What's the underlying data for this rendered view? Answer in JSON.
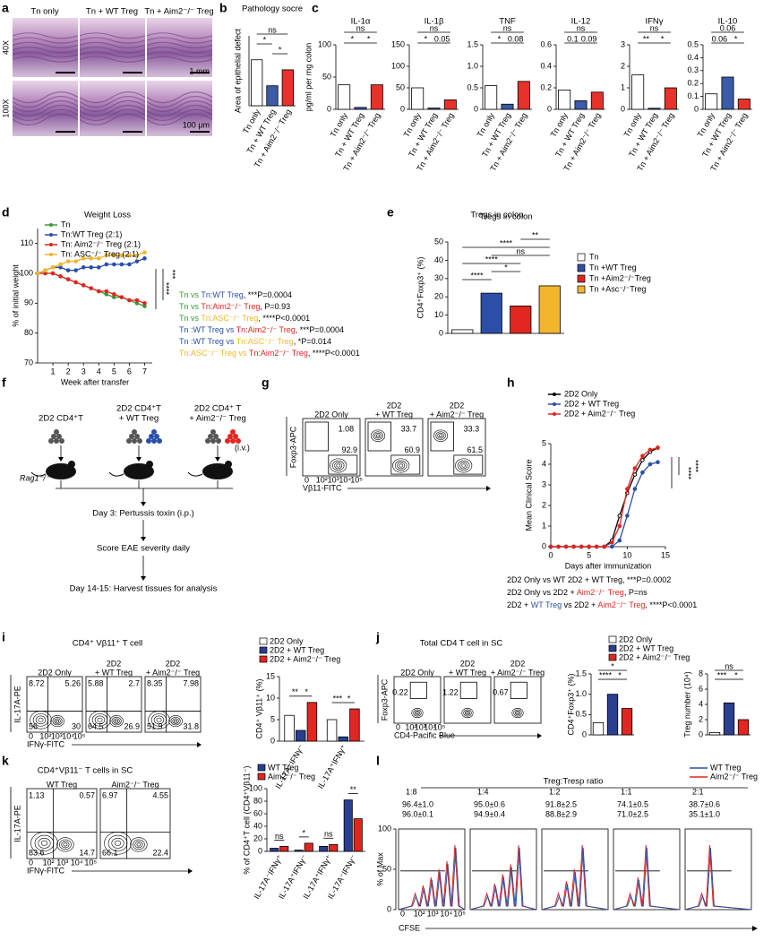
{
  "panel_labels": [
    "a",
    "b",
    "c",
    "d",
    "e",
    "f",
    "g",
    "h",
    "i",
    "j",
    "k",
    "l"
  ],
  "a": {
    "columns": [
      "Tn only",
      "Tn + WT Treg",
      "Tn + Aim2⁻/⁻ Treg"
    ],
    "rows": [
      "40X",
      "100X"
    ],
    "scale_bars": [
      "1 mm",
      "100 μm"
    ]
  },
  "b": {
    "title": "Pathology socre",
    "ylabel": "Area of epithelial defect",
    "categories": [
      "Tn only",
      "Tn + WT Treg",
      "Tn + Aim2⁻/⁻ Treg"
    ],
    "values": [
      2.3,
      1.0,
      1.8
    ],
    "colors": [
      "#ffffff",
      "#3b5aa8",
      "#e8312b"
    ],
    "ylim": [
      0,
      3.5
    ],
    "stats": [
      "ns",
      "*",
      "*"
    ]
  },
  "c": {
    "ylabel": "pg/ml per mg colon",
    "categories": [
      "Tn only",
      "Tn + WT Treg",
      "Tn + Aim2⁻/⁻ Treg"
    ],
    "colors": [
      "#ffffff",
      "#3b5aa8",
      "#e8312b"
    ],
    "charts": [
      {
        "title": "IL-1α",
        "values": [
          38,
          3,
          38
        ],
        "ylim": [
          0,
          100
        ],
        "yticks": [
          0,
          50,
          100
        ],
        "stats": [
          "ns",
          "*",
          "*"
        ]
      },
      {
        "title": "IL-1β",
        "values": [
          50,
          3,
          22
        ],
        "ylim": [
          0,
          150
        ],
        "yticks": [
          0,
          50,
          100,
          150
        ],
        "stats": [
          "ns",
          "*",
          "0.05"
        ]
      },
      {
        "title": "TNF",
        "values": [
          0.55,
          0.12,
          0.65
        ],
        "ylim": [
          0,
          1.5
        ],
        "yticks": [
          0,
          0.5,
          {
            "value": 1,
            "label": "1.0"
          },
          1.5
        ],
        "stats": [
          "ns",
          "*",
          "0.08"
        ]
      },
      {
        "title": "IL-12",
        "values": [
          0.18,
          0.08,
          0.16
        ],
        "ylim": [
          0,
          0.6
        ],
        "yticks": [
          0,
          0.2,
          0.4,
          0.6
        ],
        "stats": [
          "ns",
          "0.1",
          "0.09"
        ]
      },
      {
        "title": "IFNγ",
        "values": [
          1.6,
          0.05,
          1.0
        ],
        "ylim": [
          0,
          3
        ],
        "yticks": [
          0,
          1,
          2,
          3
        ],
        "stats": [
          "ns",
          "**",
          "*"
        ]
      },
      {
        "title": "IL-10",
        "values": [
          0.12,
          0.25,
          0.08
        ],
        "ylim": [
          0,
          0.5
        ],
        "yticks": [
          0,
          0.1,
          0.2,
          0.3,
          0.4,
          0.5
        ],
        "stats": [
          "0.06",
          "0.06",
          "*"
        ]
      }
    ]
  },
  "d": {
    "type": "line",
    "title": "Weight Loss",
    "xlabel": "Week after transfer",
    "ylabel": "% of initial weight",
    "x": [
      0,
      0.5,
      1,
      1.5,
      2,
      2.5,
      3,
      3.5,
      4,
      4.5,
      5,
      5.5,
      6,
      6.5,
      7
    ],
    "xlim": [
      0,
      7.5
    ],
    "xticks": [
      1,
      2,
      3,
      4,
      5,
      6,
      7
    ],
    "ylim": [
      70,
      115
    ],
    "yticks": [
      70,
      80,
      90,
      100,
      110
    ],
    "series": [
      {
        "name": "Tn",
        "color": "#3a9a3a",
        "values": [
          100,
          100,
          100,
          99,
          98,
          97,
          96,
          95,
          94,
          93,
          92,
          92,
          91,
          90,
          89
        ]
      },
      {
        "name": "Tn:WT Treg (2:1)",
        "color": "#2b4fa8",
        "values": [
          100,
          101,
          102,
          102,
          101,
          101,
          102,
          102,
          102,
          103,
          103,
          103,
          103,
          104,
          105
        ]
      },
      {
        "name": "Tn: Aim2⁻/⁻ Treg (2:1)",
        "color": "#e0261f",
        "values": [
          100,
          100,
          100,
          99,
          98,
          97,
          96,
          95,
          94,
          94,
          93,
          92,
          91,
          91,
          90
        ]
      },
      {
        "name": "Tn: ASC⁻/⁻ Treg (2:1)",
        "color": "#f2b52c",
        "values": [
          100,
          101,
          102,
          103,
          104,
          104,
          105,
          105,
          105,
          106,
          106,
          106,
          106,
          106,
          107
        ]
      }
    ],
    "significance": [
      "****",
      "***"
    ],
    "stats": [
      [
        {
          "text": "Tn",
          "color": "#3a9a3a"
        },
        {
          "text": " vs ",
          "color": "#3a9a3a"
        },
        {
          "text": "Tn:WT Treg",
          "color": "#2b4fa8"
        },
        {
          "text": ", ***P=0.0004",
          "color": "#000000"
        }
      ],
      [
        {
          "text": "Tn",
          "color": "#3a9a3a"
        },
        {
          "text": " vs ",
          "color": "#3a9a3a"
        },
        {
          "text": "Tn:Aim2⁻/⁻ Treg",
          "color": "#e0261f"
        },
        {
          "text": ", P=0.93",
          "color": "#000000"
        }
      ],
      [
        {
          "text": "Tn",
          "color": "#3a9a3a"
        },
        {
          "text": " vs ",
          "color": "#3a9a3a"
        },
        {
          "text": "Tn:ASC⁻/⁻ Treg",
          "color": "#f2b52c"
        },
        {
          "text": ", ****P<0.0001",
          "color": "#000000"
        }
      ],
      [
        {
          "text": "Tn :WT Treg",
          "color": "#2b4fa8"
        },
        {
          "text": " vs ",
          "color": "#2b4fa8"
        },
        {
          "text": "Tn:Aim2⁻/⁻ Treg",
          "color": "#e0261f"
        },
        {
          "text": ", ***P=0.0004",
          "color": "#000000"
        }
      ],
      [
        {
          "text": "Tn :WT Treg",
          "color": "#2b4fa8"
        },
        {
          "text": " vs ",
          "color": "#2b4fa8"
        },
        {
          "text": "Tn:ASC⁻/⁻ Treg",
          "color": "#f2b52c"
        },
        {
          "text": ", *P=0.014",
          "color": "#000000"
        }
      ],
      [
        {
          "text": "Tn:ASC⁻/⁻ Treg",
          "color": "#f2b52c"
        },
        {
          "text": " vs ",
          "color": "#f2b52c"
        },
        {
          "text": "Tn:Aim2⁻/⁻ Treg",
          "color": "#e0261f"
        },
        {
          "text": ", ****P<0.0001",
          "color": "#000000"
        }
      ]
    ]
  },
  "e": {
    "title": "Tregs in colon",
    "ylabel": "CD4⁺Foxp3⁺ (%)",
    "values": [
      2,
      22,
      15,
      26
    ],
    "legend": [
      "Tn",
      "Tn +WT Treg",
      "Tn +Aim2⁻/⁻Treg",
      "Tn +Asc⁻/⁻Treg"
    ],
    "colors": [
      "#ffffff",
      "#2b4fa8",
      "#e0261f",
      "#f2b52c"
    ],
    "ylim": [
      0,
      50
    ],
    "yticks": [
      0,
      10,
      20,
      30,
      40,
      50
    ],
    "stats": [
      "**",
      "****",
      "ns",
      "****",
      "*",
      "****"
    ]
  },
  "f": {
    "groups": [
      [
        "2D2 CD4⁺T"
      ],
      [
        "2D2 CD4⁺T",
        "+ WT Treg"
      ],
      [
        "2D2 CD4⁺ T",
        "+ Aim2⁻/⁻ Treg"
      ]
    ],
    "route": "(i.v.)",
    "host": "Rag1⁻/⁻",
    "steps": [
      "Day 3: Pertussis toxin (i.p.)",
      "Score EAE severity daily",
      "Day 14-15: Harvest tissues for analysis"
    ]
  },
  "flow_ticks": [
    "0",
    "10²",
    "10³",
    "10⁴",
    "10⁵"
  ],
  "g": {
    "columns": [
      [
        "2D2 Only"
      ],
      [
        "2D2",
        "+ WT Treg"
      ],
      [
        "2D2",
        "+ Aim2⁻/⁻ Treg"
      ]
    ],
    "ylabel": "Foxp3-APC",
    "xlabel": "Vβ11-FITC",
    "numbers": [
      [
        "1.08",
        "92.9"
      ],
      [
        "33.7",
        "60.9"
      ],
      [
        "33.3",
        "61.5"
      ]
    ]
  },
  "h": {
    "type": "line",
    "xlabel": "Days after immunization",
    "ylabel": "Mean Clinical Score",
    "x": [
      0,
      1,
      2,
      3,
      4,
      5,
      6,
      7,
      8,
      9,
      10,
      11,
      12,
      13,
      14
    ],
    "xlim": [
      0,
      15
    ],
    "xticks": [
      0,
      5,
      10,
      15
    ],
    "ylim": [
      0,
      5
    ],
    "yticks": [
      0,
      1,
      2,
      3,
      4,
      5
    ],
    "series": [
      {
        "name": "2D2 Only",
        "color": "#000000",
        "values": [
          0,
          0,
          0,
          0,
          0,
          0,
          0,
          0,
          0.3,
          1.5,
          2.6,
          3.5,
          4.2,
          4.6,
          4.8
        ]
      },
      {
        "name": "2D2 + WT Treg",
        "color": "#2b4fa8",
        "values": [
          0,
          0,
          0,
          0,
          0,
          0,
          0,
          0,
          0,
          0.3,
          1.5,
          2.8,
          3.6,
          4.0,
          4.1
        ]
      },
      {
        "name": "2D2 + Aim2⁻/⁻ Treg",
        "color": "#e0261f",
        "values": [
          0,
          0,
          0,
          0,
          0,
          0,
          0,
          0,
          0.2,
          1.0,
          2.8,
          3.8,
          4.4,
          4.7,
          4.8
        ]
      }
    ],
    "significance": [
      "****",
      "****"
    ],
    "stats": [
      [
        {
          "text": "2D2 Only vs WT 2D2 + WT Treg, ***P=0.0002",
          "color": "#000000"
        }
      ],
      [
        {
          "text": "2D2 Only vs 2D2 + ",
          "color": "#000000"
        },
        {
          "text": "Aim2⁻/⁻ Treg",
          "color": "#e0261f"
        },
        {
          "text": ", P=ns",
          "color": "#000000"
        }
      ],
      [
        {
          "text": "2D2 + ",
          "color": "#000000"
        },
        {
          "text": "WT Treg",
          "color": "#2b4fa8"
        },
        {
          "text": " vs 2D2 + ",
          "color": "#000000"
        },
        {
          "text": "Aim2⁻/⁻ Treg",
          "color": "#e0261f"
        },
        {
          "text": ", ****P<0.0001",
          "color": "#000000"
        }
      ]
    ]
  },
  "i": {
    "title": "CD4⁺ Vβ11⁺ T cell",
    "columns": [
      [
        "2D2 Only"
      ],
      [
        "2D2",
        "+ WT Treg"
      ],
      [
        "2D2",
        "+ Aim2⁻/⁻ Treg"
      ]
    ],
    "ylabel": "IL-17A-PE",
    "xlabel": "IFNγ-FITC",
    "numbers": [
      [
        "8.72",
        "5.26",
        "56",
        "30"
      ],
      [
        "5.88",
        "2.7",
        "64.5",
        "26.9"
      ],
      [
        "8.35",
        "7.98",
        "51.9",
        "31.8"
      ]
    ],
    "bar": {
      "ylabel": "CD4⁺ Vβ11⁺ (%)",
      "groups": [
        "IL-17A⁺IFNγ⁻",
        "IL-17A⁺IFNγ⁺"
      ],
      "ylim": [
        0,
        15
      ],
      "yticks": [
        0,
        5,
        10,
        15
      ],
      "series": [
        {
          "name": "2D2 Only",
          "color": "#ffffff",
          "values": [
            6,
            5
          ]
        },
        {
          "name": "2D2 + WT Treg",
          "color": "#2a3f8f",
          "values": [
            2.5,
            1
          ]
        },
        {
          "name": "2D2 + Aim2⁻/⁻ Treg",
          "color": "#e0261f",
          "values": [
            9,
            7.5
          ]
        }
      ],
      "stats": [
        [
          "**",
          "*"
        ],
        [
          "***",
          "*"
        ]
      ]
    }
  },
  "j": {
    "title": "Total CD4 T cell in SC",
    "columns": [
      [
        "2D2 Only"
      ],
      [
        "2D2",
        "+ WT Treg"
      ],
      [
        "2D2",
        "+ Aim2⁻/⁻ Treg"
      ]
    ],
    "ylabel": "Foxp3-APC",
    "xlabel": "CD4-Pacific Blue",
    "numbers": [
      [
        "0.22"
      ],
      [
        "1.22"
      ],
      [
        "0.67"
      ]
    ],
    "legend": [
      "2D2 Only",
      "2D2 + WT Treg",
      "2D2 + Aim2⁻/⁻ Treg"
    ],
    "colors": [
      "#ffffff",
      "#2a3f8f",
      "#e0261f"
    ],
    "bars": [
      {
        "ylabel": "CD4⁺Foxp3⁺ (%)",
        "values": [
          0.3,
          1.0,
          0.65
        ],
        "ylim": [
          0,
          1.5
        ],
        "yticks": [
          0,
          0.5,
          {
            "value": 1,
            "label": "1.0"
          },
          1.5
        ],
        "stats": [
          "*",
          "****",
          "*"
        ]
      },
      {
        "ylabel": "Treg number (10⁴)",
        "values": [
          0.3,
          4.2,
          2.0
        ],
        "ylim": [
          0,
          8
        ],
        "yticks": [
          0,
          2,
          4,
          6,
          8
        ],
        "stats": [
          "ns",
          "***",
          "*"
        ]
      }
    ]
  },
  "k": {
    "title": "CD4⁺Vβ11⁻ T cells in SC",
    "columns": [
      [
        "WT Treg"
      ],
      [
        "Aim2⁻/⁻ Treg"
      ]
    ],
    "ylabel": "IL-17A-PE",
    "xlabel": "IFNγ-FITC",
    "numbers": [
      [
        "1.13",
        "0.57",
        "83.6",
        "14.7"
      ],
      [
        "6.97",
        "4.55",
        "66.1",
        "22.4"
      ]
    ],
    "bar": {
      "ylabel": "% of CD4⁺T cell (CD4⁺Vβ11⁻)",
      "groups": [
        "IL-17A⁻IFNγ⁺",
        "IL-17A⁺IFNγ⁻",
        "IL-17A⁺IFNγ⁺",
        "IL-17A⁻IFNγ⁻"
      ],
      "ylim": [
        0,
        100
      ],
      "yticks": [
        0,
        20,
        40,
        60,
        80,
        100
      ],
      "series": [
        {
          "name": "WT Treg",
          "color": "#2a3f8f",
          "values": [
            5,
            2,
            8,
            82
          ]
        },
        {
          "name": "Aim2⁻/⁻ Treg",
          "color": "#e0261f",
          "values": [
            8,
            13,
            11,
            52
          ]
        }
      ],
      "stats": [
        [
          "ns"
        ],
        [
          "*"
        ],
        [
          "ns"
        ],
        [
          "**"
        ]
      ]
    }
  },
  "l": {
    "title": "Treg:Tresp ratio",
    "ratios": [
      "1:8",
      "1:4",
      "1:2",
      "1:1",
      "2:1"
    ],
    "series": [
      {
        "name": "WT Treg",
        "color": "#2b4fa8",
        "labels": [
          "96.4±1.0",
          "95.0±0.6",
          "91.8±2.5",
          "74.1±0.5",
          "38.7±0.6"
        ]
      },
      {
        "name": "Aim2⁻/⁻ Treg",
        "color": "#e0261f",
        "labels": [
          "96.0±0.1",
          "94.9±0.4",
          "88.8±2.9",
          "71.0±2.5",
          "35.1±1.0"
        ]
      }
    ],
    "ylabel": "% of Max",
    "xlabel": "CFSE",
    "yticks": [
      0,
      50,
      100
    ],
    "ylim": [
      0,
      100
    ]
  }
}
